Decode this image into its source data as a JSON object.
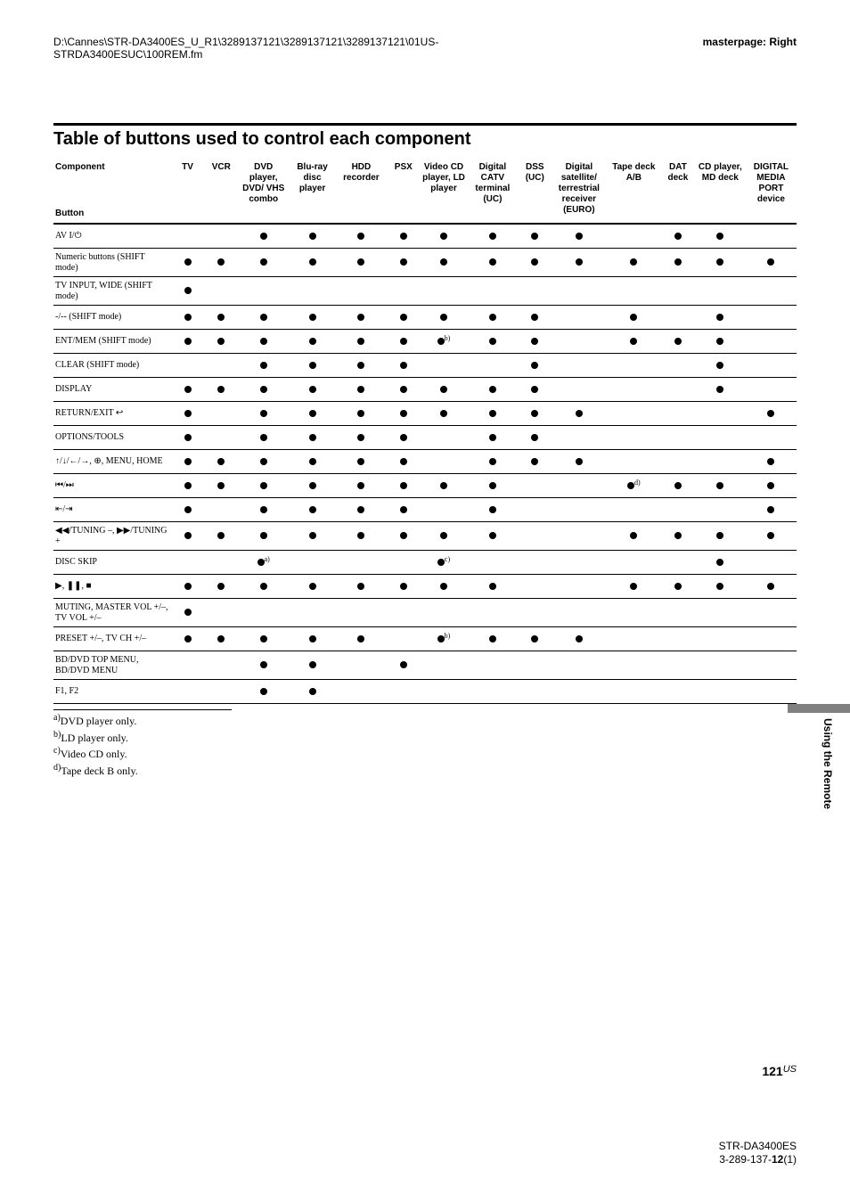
{
  "header": {
    "left": "D:\\Cannes\\STR-DA3400ES_U_R1\\3289137121\\3289137121\\3289137121\\01US-\nSTRDA3400ESUC\\100REM.fm",
    "right": "masterpage: Right"
  },
  "section_title": "Table of buttons used to control each component",
  "table": {
    "col_widths": [
      "15%",
      "4.3%",
      "4.3%",
      "6.5%",
      "6%",
      "6.5%",
      "4.3%",
      "6%",
      "6.5%",
      "4.3%",
      "7%",
      "7%",
      "4.3%",
      "6.5%",
      "6.5%"
    ],
    "left_header_top": "Component",
    "left_header_bottom": "Button",
    "columns": [
      "TV",
      "VCR",
      "DVD player, DVD/ VHS combo",
      "Blu-ray disc player",
      "HDD recorder",
      "PSX",
      "Video CD player, LD player",
      "Digital CATV terminal (UC)",
      "DSS (UC)",
      "Digital satellite/ terrestrial receiver (EURO)",
      "Tape deck A/B",
      "DAT deck",
      "CD player, MD deck",
      "DIGITAL MEDIA PORT device"
    ],
    "rows": [
      {
        "label": "AV I/⏻",
        "dots": [
          "",
          "",
          "d",
          "d",
          "d",
          "d",
          "d",
          "d",
          "d",
          "d",
          "",
          "d",
          "d",
          ""
        ],
        "override": {
          "0": "d",
          "1": "d"
        }
      },
      {
        "label": "Numeric buttons (SHIFT mode)",
        "dots": [
          "d",
          "d",
          "d",
          "d",
          "d",
          "d",
          "d",
          "d",
          "d",
          "d",
          "d",
          "d",
          "d",
          "d"
        ]
      },
      {
        "label": "TV INPUT, WIDE (SHIFT mode)",
        "dots": [
          "d",
          "",
          "",
          "",
          "",
          "",
          "",
          "",
          "",
          "",
          "",
          "",
          "",
          ""
        ]
      },
      {
        "label": "-/-- (SHIFT mode)",
        "dots": [
          "d",
          "d",
          "d",
          "d",
          "d",
          "d",
          "d",
          "d",
          "d",
          "",
          "d",
          "",
          "d",
          ""
        ]
      },
      {
        "label": "ENT/MEM (SHIFT mode)",
        "dots": [
          "d",
          "d",
          "d",
          "d",
          "d",
          "d",
          "db",
          "d",
          "d",
          "",
          "d",
          "d",
          "d",
          ""
        ]
      },
      {
        "label": "CLEAR (SHIFT mode)",
        "dots": [
          "",
          "",
          "d",
          "d",
          "d",
          "d",
          "",
          "",
          "d",
          "",
          "",
          "",
          "d",
          ""
        ]
      },
      {
        "label": "DISPLAY",
        "dots": [
          "d",
          "d",
          "d",
          "d",
          "d",
          "d",
          "d",
          "d",
          "d",
          "",
          "",
          "",
          "d",
          ""
        ]
      },
      {
        "label": "RETURN/EXIT ↩",
        "dots": [
          "d",
          "",
          "d",
          "d",
          "d",
          "d",
          "d",
          "d",
          "d",
          "d",
          "",
          "",
          "",
          "d"
        ]
      },
      {
        "label": "OPTIONS/TOOLS",
        "dots": [
          "d",
          "",
          "d",
          "d",
          "d",
          "d",
          "",
          "d",
          "d",
          "",
          "",
          "",
          "",
          ""
        ]
      },
      {
        "label": "↑/↓/←/→, ⊕, MENU, HOME",
        "dots": [
          "d",
          "d",
          "d",
          "d",
          "d",
          "d",
          "",
          "d",
          "d",
          "d",
          "",
          "",
          "",
          "d"
        ]
      },
      {
        "label": "⏮/⏭",
        "dots": [
          "d",
          "d",
          "d",
          "d",
          "d",
          "d",
          "d",
          "d",
          "",
          "",
          "dd",
          "d",
          "d",
          "d"
        ]
      },
      {
        "label": "⇤/⇥",
        "dots": [
          "d",
          "",
          "d",
          "d",
          "d",
          "d",
          "",
          "d",
          "",
          "",
          "",
          "",
          "",
          "d"
        ]
      },
      {
        "label": "◀◀/TUNING –, ▶▶/TUNING +",
        "dots": [
          "d",
          "d",
          "d",
          "d",
          "d",
          "d",
          "d",
          "d",
          "",
          "",
          "d",
          "d",
          "d",
          "d"
        ]
      },
      {
        "label": "DISC SKIP",
        "dots": [
          "",
          "",
          "da",
          "",
          "",
          "",
          "dc",
          "",
          "",
          "",
          "",
          "",
          "d",
          ""
        ]
      },
      {
        "label": "▶, ❚❚, ■",
        "dots": [
          "d",
          "d",
          "d",
          "d",
          "d",
          "d",
          "d",
          "d",
          "",
          "",
          "d",
          "d",
          "d",
          "d"
        ]
      },
      {
        "label": "MUTING, MASTER VOL +/–, TV VOL +/–",
        "dots": [
          "d",
          "",
          "",
          "",
          "",
          "",
          "",
          "",
          "",
          "",
          "",
          "",
          "",
          ""
        ]
      },
      {
        "label": "PRESET +/–, TV CH +/–",
        "dots": [
          "d",
          "d",
          "d",
          "d",
          "d",
          "",
          "db",
          "d",
          "d",
          "d",
          "",
          "",
          "",
          ""
        ]
      },
      {
        "label": "BD/DVD TOP MENU, BD/DVD MENU",
        "dots": [
          "",
          "",
          "d",
          "d",
          "",
          "d",
          "",
          "",
          "",
          "",
          "",
          "",
          "",
          ""
        ]
      },
      {
        "label": "F1, F2",
        "dots": [
          "",
          "",
          "d",
          "d",
          "",
          "",
          "",
          "",
          "",
          "",
          "",
          "",
          "",
          ""
        ]
      }
    ]
  },
  "footnotes": [
    "a)DVD player only.",
    "b)LD player only.",
    "c)Video CD only.",
    "d)Tape deck B only."
  ],
  "side_tab": "Using the Remote",
  "page_number": {
    "num": "121",
    "suffix": "US"
  },
  "footer": {
    "line1": "STR-DA3400ES",
    "line2": "3-289-137-12(1)"
  },
  "colors": {
    "text": "#000000",
    "bg": "#ffffff",
    "tab_bar": "#808080"
  }
}
